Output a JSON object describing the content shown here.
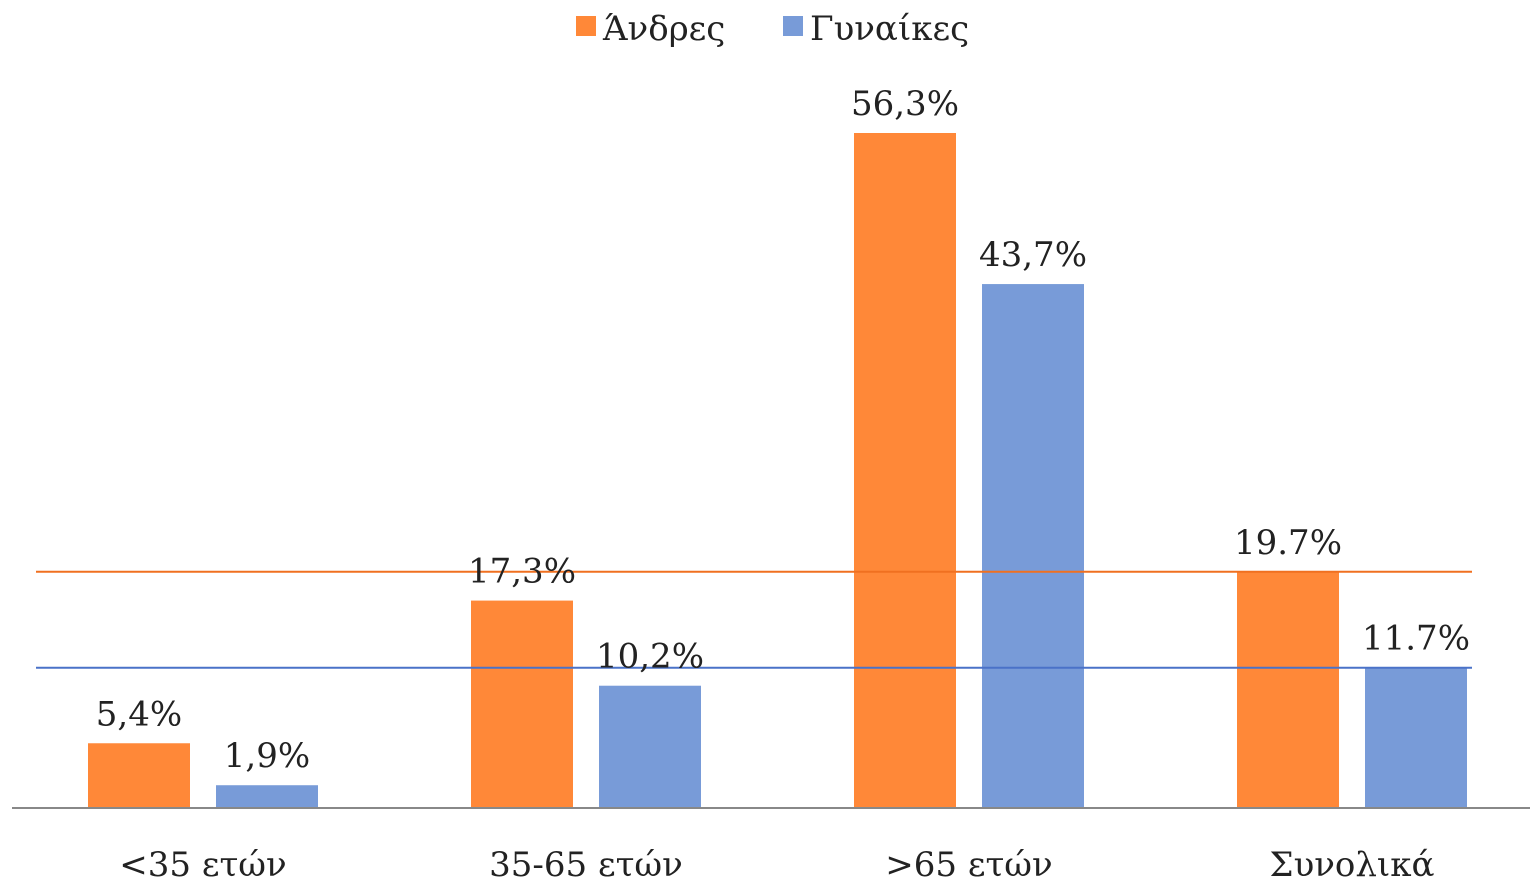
{
  "chart_data": {
    "type": "bar",
    "categories": [
      "<35 ετών",
      "35-65 ετών",
      ">65 ετών",
      "Συνολικά"
    ],
    "series": [
      {
        "name": "Άνδρες",
        "values": [
          5.4,
          17.3,
          56.3,
          19.7
        ],
        "labels": [
          "5,4%",
          "17,3%",
          "56,3%",
          "19.7%"
        ],
        "color": "#FF8838"
      },
      {
        "name": "Γυναίκες",
        "values": [
          1.9,
          10.2,
          43.7,
          11.7
        ],
        "labels": [
          "1,9%",
          "10,2%",
          "43,7%",
          "11.7%"
        ],
        "color": "#789BD8"
      }
    ],
    "reference_lines": [
      {
        "series": "Άνδρες",
        "value": 19.7,
        "color": "#F07020"
      },
      {
        "series": "Γυναίκες",
        "value": 11.7,
        "color": "#4A72C8"
      }
    ],
    "ylim": [
      0,
      57
    ],
    "grid": false,
    "legend_position": "top-center",
    "axis_color": "#888888"
  }
}
